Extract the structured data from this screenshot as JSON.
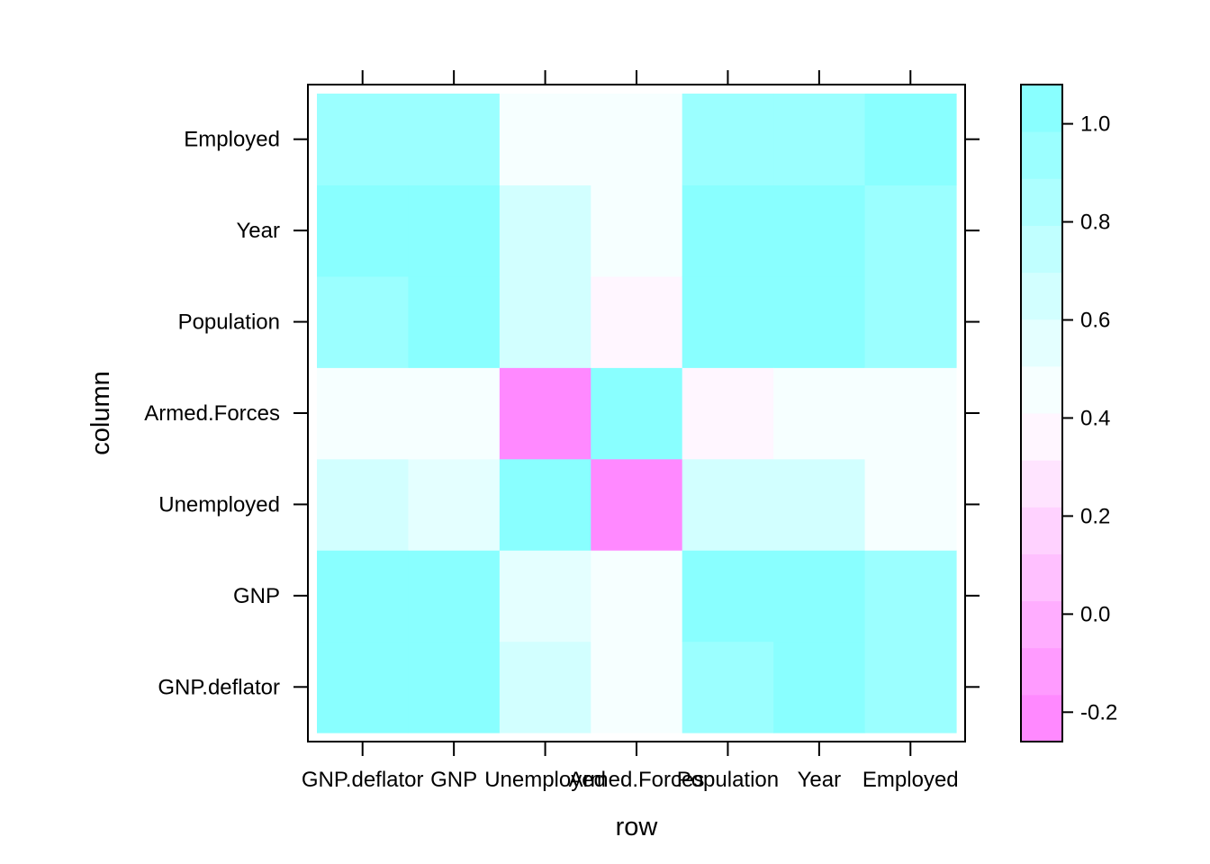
{
  "chart_data": {
    "type": "heatmap",
    "xlabel": "row",
    "ylabel": "column",
    "variables": [
      "GNP.deflator",
      "GNP",
      "Unemployed",
      "Armed.Forces",
      "Population",
      "Year",
      "Employed"
    ],
    "values": [
      [
        1.0,
        0.99,
        0.62,
        0.46,
        0.98,
        0.99,
        0.97
      ],
      [
        0.99,
        1.0,
        0.6,
        0.45,
        0.99,
        1.0,
        0.98
      ],
      [
        0.62,
        0.6,
        1.0,
        -0.18,
        0.69,
        0.67,
        0.5
      ],
      [
        0.46,
        0.45,
        -0.18,
        1.0,
        0.36,
        0.42,
        0.46
      ],
      [
        0.98,
        0.99,
        0.69,
        0.36,
        1.0,
        0.99,
        0.96
      ],
      [
        0.99,
        1.0,
        0.67,
        0.42,
        0.99,
        1.0,
        0.97
      ],
      [
        0.97,
        0.98,
        0.5,
        0.46,
        0.96,
        0.97,
        1.0
      ]
    ],
    "colorkey": {
      "range": [
        -0.26,
        1.08
      ],
      "ticks": [
        -0.2,
        0.0,
        0.2,
        0.4,
        0.6,
        0.8,
        1.0
      ],
      "tick_labels": [
        "-0.2",
        "0.0",
        "0.2",
        "0.4",
        "0.6",
        "0.8",
        "1.0"
      ],
      "low_color": "#ff80ff",
      "mid_color": "#ffffff",
      "high_color": "#80ffff"
    },
    "legend": "right"
  }
}
